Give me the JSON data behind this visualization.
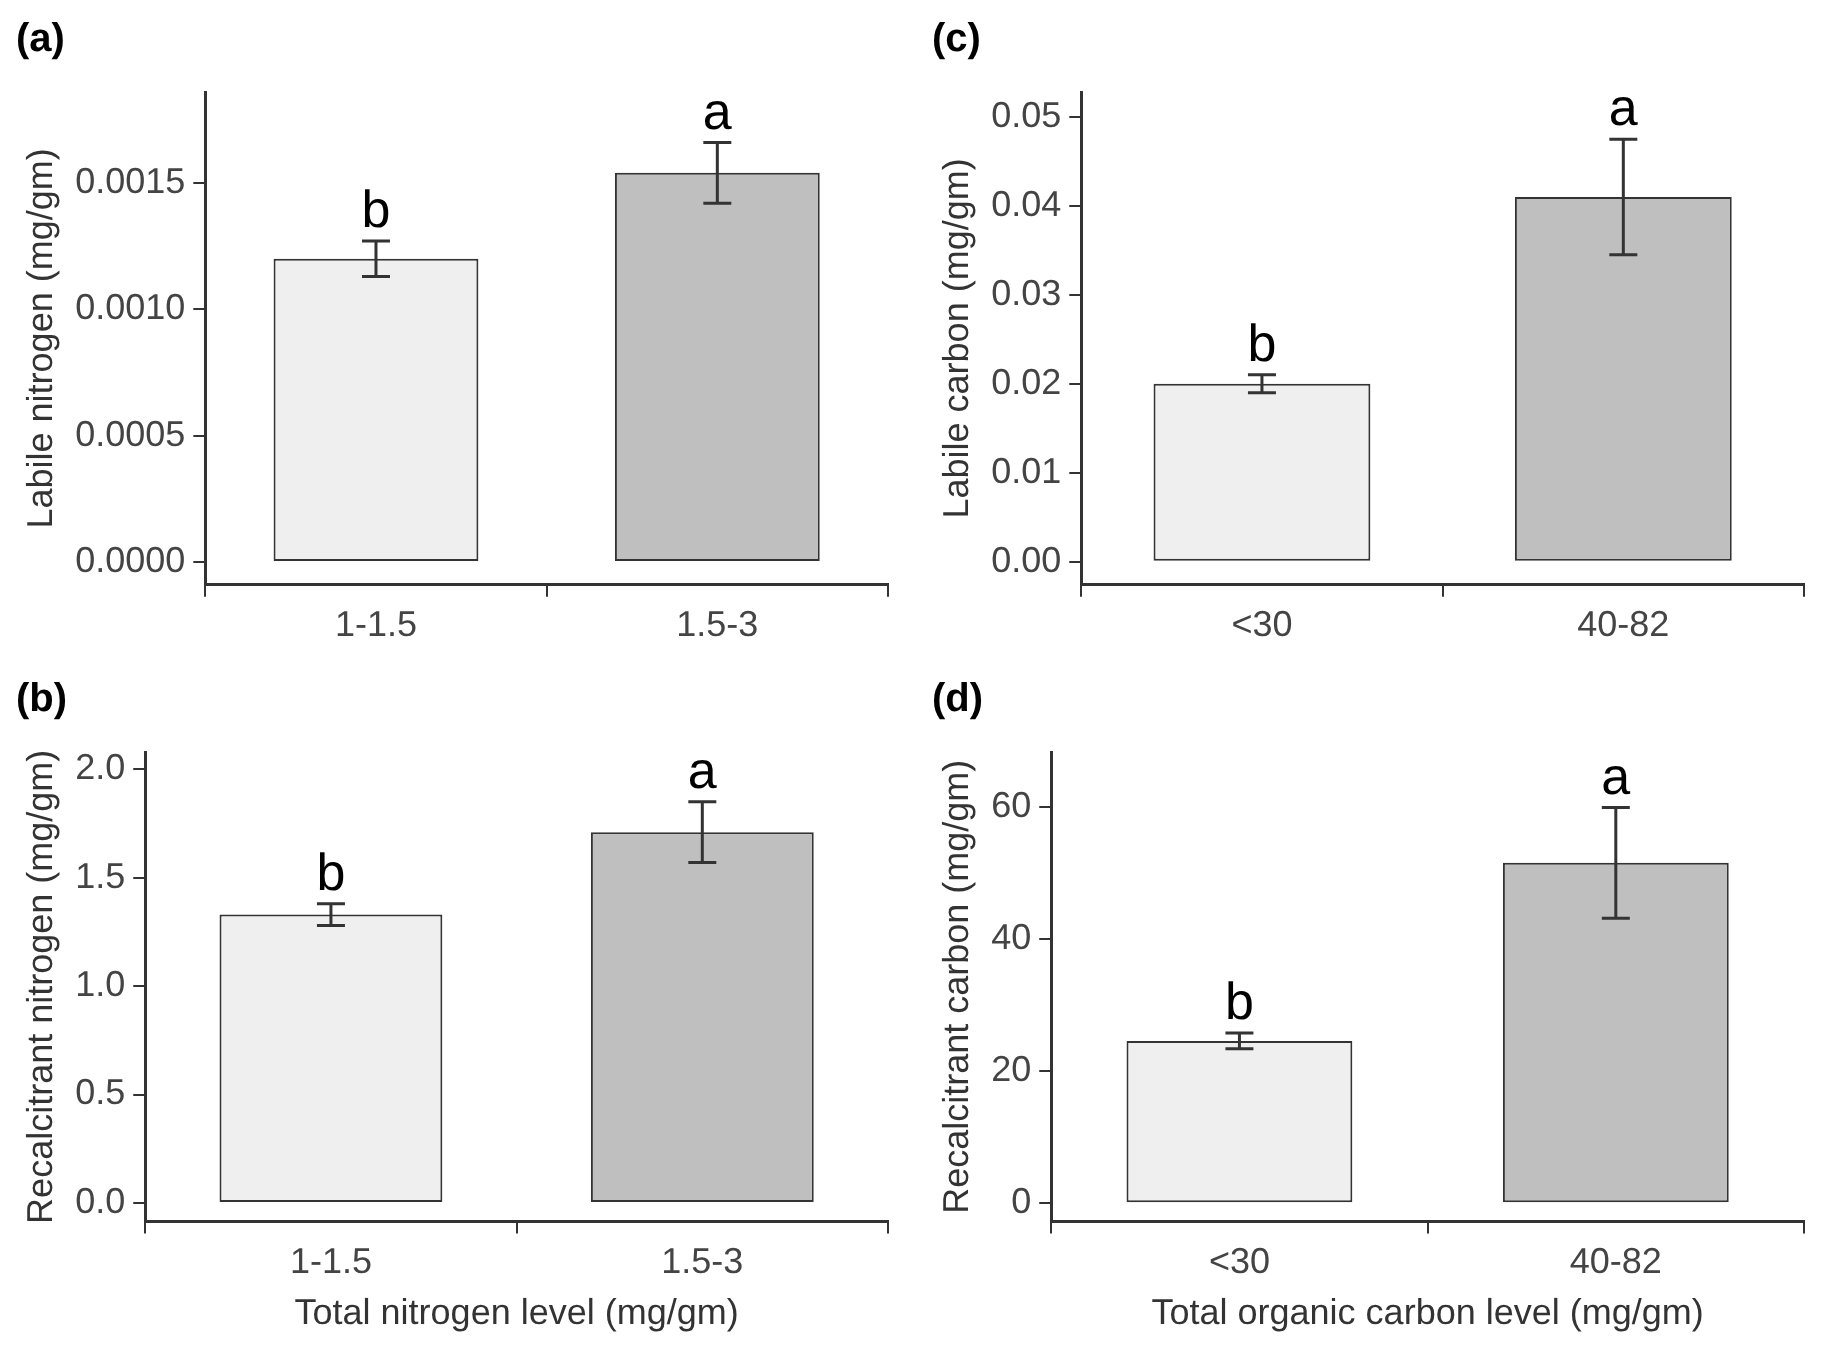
{
  "chart_data": [
    {
      "type": "bar",
      "title": "(a)",
      "ylabel": "Labile nitrogen (mg/gm)",
      "categories": [
        "1-1.5",
        "1.5-3"
      ],
      "values": [
        0.0012,
        0.00154
      ],
      "colors": [
        "#efefef",
        "#bfbfbf"
      ],
      "errors": [
        7e-05,
        0.00012
      ],
      "ylim": [
        -9e-05,
        0.00186
      ],
      "yticks": [
        {
          "value": 0,
          "label": "0.0000"
        },
        {
          "value": 0.0005,
          "label": "0.0005"
        },
        {
          "value": 0.001,
          "label": "0.0010"
        },
        {
          "value": 0.0015,
          "label": "0.0015"
        }
      ],
      "grid": false,
      "annotations": [
        {
          "text": "b",
          "x": "1-1.5",
          "y": 0.00127
        },
        {
          "text": "a",
          "x": "1.5-3",
          "y": 0.00166
        }
      ]
    },
    {
      "type": "bar",
      "title": "(c)",
      "ylabel": "Labile carbon (mg/gm)",
      "categories": [
        "<30",
        "40-82"
      ],
      "values": [
        0.02,
        0.041
      ],
      "colors": [
        "#efefef",
        "#bfbfbf"
      ],
      "errors": [
        0.001,
        0.0065
      ],
      "ylim": [
        -0.0026,
        0.0528
      ],
      "yticks": [
        {
          "value": 0,
          "label": "0.00"
        },
        {
          "value": 0.01,
          "label": "0.01"
        },
        {
          "value": 0.02,
          "label": "0.02"
        },
        {
          "value": 0.03,
          "label": "0.03"
        },
        {
          "value": 0.04,
          "label": "0.04"
        },
        {
          "value": 0.05,
          "label": "0.05"
        }
      ],
      "grid": false,
      "annotations": [
        {
          "text": "b",
          "x": "<30",
          "y": 0.021
        },
        {
          "text": "a",
          "x": "40-82",
          "y": 0.0475
        }
      ]
    },
    {
      "type": "bar",
      "title": "(b)",
      "ylabel": "Recalcitrant nitrogen (mg/gm)",
      "xlabel": "Total nitrogen level (mg/gm)",
      "categories": [
        "1-1.5",
        "1.5-3"
      ],
      "values": [
        1.33,
        1.71
      ],
      "colors": [
        "#efefef",
        "#bfbfbf"
      ],
      "errors": [
        0.05,
        0.14
      ],
      "ylim": [
        -0.086,
        2.08
      ],
      "yticks": [
        {
          "value": 0,
          "label": "0.0"
        },
        {
          "value": 0.5,
          "label": "0.5"
        },
        {
          "value": 1,
          "label": "1.0"
        },
        {
          "value": 1.5,
          "label": "1.5"
        },
        {
          "value": 2,
          "label": "2.0"
        }
      ],
      "grid": false,
      "annotations": [
        {
          "text": "b",
          "x": "1-1.5",
          "y": 1.38
        },
        {
          "text": "a",
          "x": "1.5-3",
          "y": 1.85
        }
      ]
    },
    {
      "type": "bar",
      "title": "(d)",
      "ylabel": "Recalcitrant carbon (mg/gm)",
      "xlabel": "Total organic carbon level (mg/gm)",
      "categories": [
        "<30",
        "40-82"
      ],
      "values": [
        24.6,
        51.6
      ],
      "colors": [
        "#efefef",
        "#bfbfbf"
      ],
      "errors": [
        1.2,
        8.4
      ],
      "ylim": [
        -2.8,
        68.4
      ],
      "yticks": [
        0,
        20,
        40,
        60
      ],
      "grid": false,
      "annotations": [
        {
          "text": "b",
          "x": "<30",
          "y": 25.8
        },
        {
          "text": "a",
          "x": "40-82",
          "y": 60
        }
      ]
    }
  ]
}
